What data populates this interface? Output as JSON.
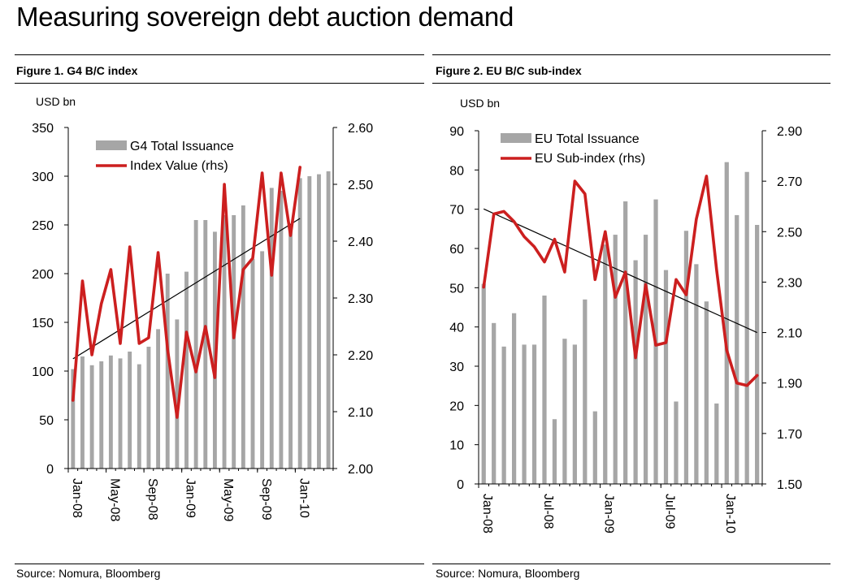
{
  "page_title": "Measuring sovereign debt auction demand",
  "figures": [
    {
      "title": "Figure 1. G4 B/C index",
      "source": "Source: Nomura, Bloomberg"
    },
    {
      "title": "Figure 2. EU B/C sub-index",
      "source": "Source: Nomura, Bloomberg"
    }
  ],
  "colors": {
    "bar": "#a6a6a6",
    "line": "#cc1f1f",
    "trend": "#000000"
  },
  "chart_data": [
    {
      "type": "bar",
      "title": "Figure 1. G4 B/C index",
      "unit_label": "USD bn",
      "x_tick_labels": [
        "Jan-08",
        "May-08",
        "Sep-08",
        "Jan-09",
        "May-09",
        "Sep-09",
        "Jan-10"
      ],
      "x_tick_index": [
        0,
        4,
        8,
        12,
        16,
        20,
        24
      ],
      "ylim_left": [
        0,
        350
      ],
      "yticks_left": [
        "0",
        "50",
        "100",
        "150",
        "200",
        "250",
        "300",
        "350"
      ],
      "ylim_right": [
        2.0,
        2.6
      ],
      "yticks_right": [
        "2.00",
        "2.10",
        "2.20",
        "2.30",
        "2.40",
        "2.50",
        "2.60"
      ],
      "legend_position": "top-left",
      "series": [
        {
          "name": "G4 Total  Issuance",
          "axis": "left",
          "kind": "bar",
          "values": [
            102,
            115,
            106,
            110,
            116,
            113,
            120,
            107,
            125,
            143,
            200,
            153,
            202,
            255,
            255,
            243,
            260,
            260,
            270,
            215,
            223,
            288,
            285,
            245,
            298,
            300,
            302,
            305
          ]
        },
        {
          "name": "Index Value (rhs)",
          "axis": "right",
          "kind": "line",
          "values": [
            2.12,
            2.33,
            2.2,
            2.29,
            2.35,
            2.22,
            2.39,
            2.22,
            2.23,
            2.38,
            2.21,
            2.09,
            2.24,
            2.17,
            2.25,
            2.16,
            2.5,
            2.23,
            2.35,
            2.37,
            2.52,
            2.34,
            2.52,
            2.41,
            2.53
          ]
        },
        {
          "name": "trend",
          "axis": "right",
          "kind": "trend",
          "from": [
            0,
            2.193
          ],
          "to": [
            24,
            2.44
          ]
        }
      ]
    },
    {
      "type": "bar",
      "title": "Figure 2. EU B/C sub-index",
      "unit_label": "USD bn",
      "x_tick_labels": [
        "Jan-08",
        "Jul-08",
        "Jan-09",
        "Jul-09",
        "Jan-10"
      ],
      "x_tick_index": [
        0,
        6,
        12,
        18,
        24
      ],
      "ylim_left": [
        0,
        90
      ],
      "yticks_left": [
        "0",
        "10",
        "20",
        "30",
        "40",
        "50",
        "60",
        "70",
        "80",
        "90"
      ],
      "ylim_right": [
        1.5,
        2.9
      ],
      "yticks_right": [
        "1.50",
        "1.70",
        "1.90",
        "2.10",
        "2.30",
        "2.50",
        "2.70",
        "2.90"
      ],
      "legend_position": "top-left",
      "series": [
        {
          "name": "EU Total  Issuance",
          "axis": "left",
          "kind": "bar",
          "values": [
            51,
            41,
            35,
            43.5,
            35.5,
            35.5,
            48,
            16.5,
            37,
            35.5,
            47,
            18.5,
            61,
            63.5,
            72,
            57,
            63.5,
            72.5,
            54.5,
            21,
            64.5,
            56,
            46.5,
            20.5,
            82,
            68.5,
            79.5,
            66
          ]
        },
        {
          "name": "EU Sub-index (rhs)",
          "axis": "right",
          "kind": "line",
          "values": [
            2.28,
            2.57,
            2.58,
            2.54,
            2.48,
            2.44,
            2.38,
            2.47,
            2.34,
            2.7,
            2.65,
            2.31,
            2.5,
            2.24,
            2.34,
            2.0,
            2.29,
            2.05,
            2.06,
            2.31,
            2.25,
            2.55,
            2.72,
            2.35,
            2.03,
            1.9,
            1.89,
            1.93
          ]
        },
        {
          "name": "trend",
          "axis": "right",
          "kind": "trend",
          "from": [
            0,
            2.59
          ],
          "to": [
            27,
            2.1
          ]
        }
      ]
    }
  ]
}
